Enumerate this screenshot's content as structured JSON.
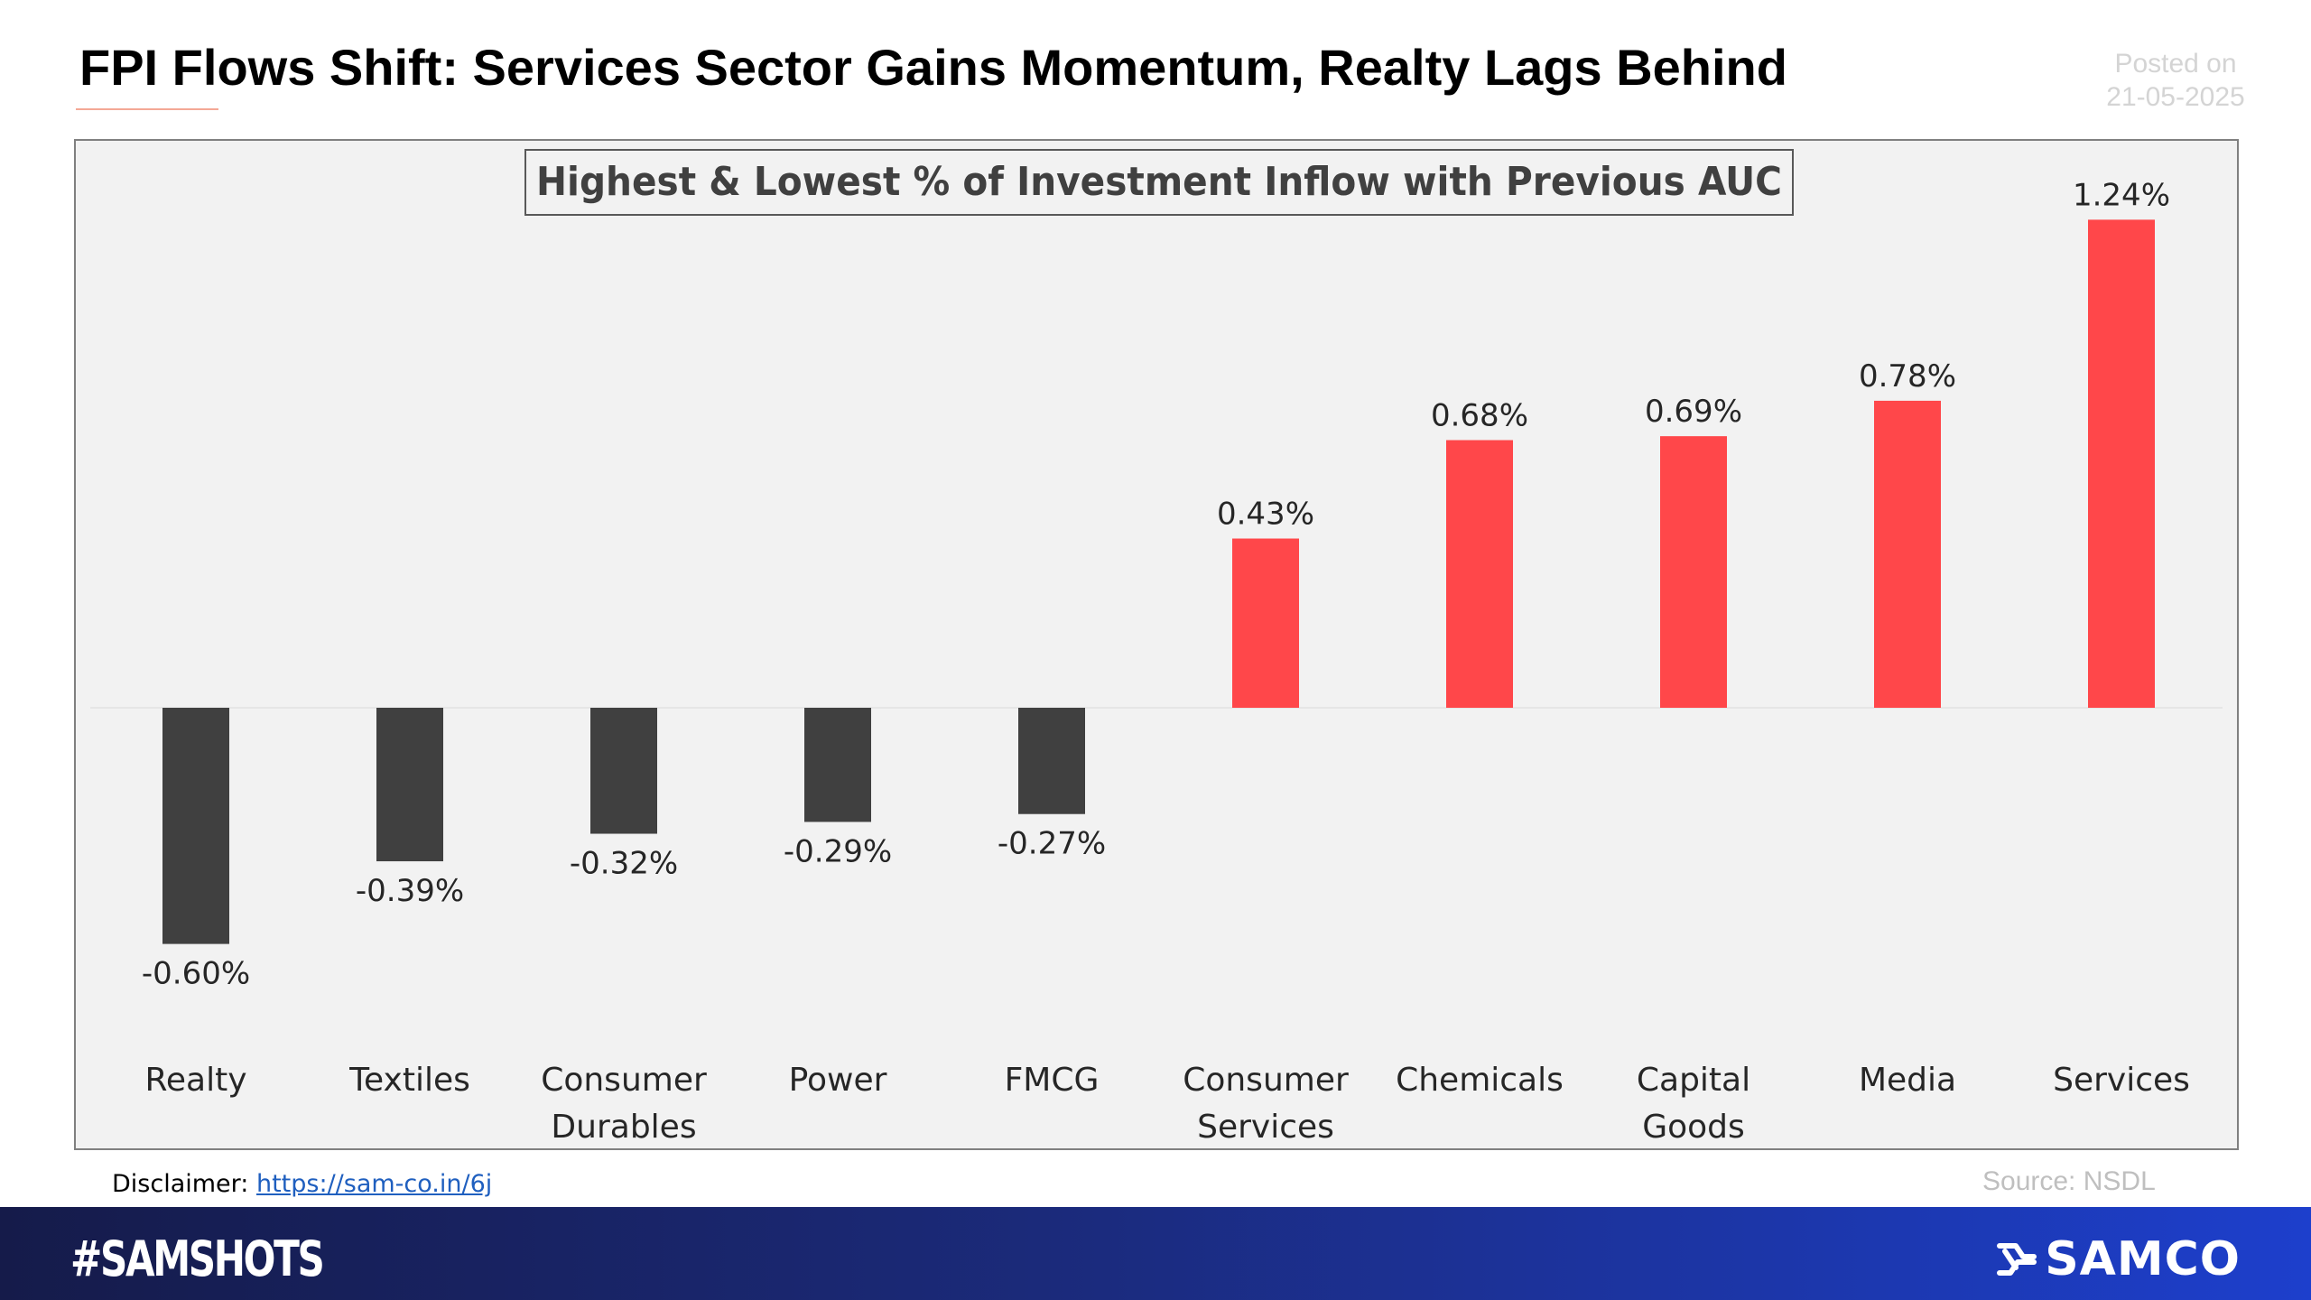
{
  "header": {
    "title": "FPI Flows Shift: Services Sector Gains Momentum, Realty Lags Behind",
    "posted_label": "Posted on",
    "posted_date": "21-05-2025"
  },
  "chart_data": {
    "type": "bar",
    "title": "Highest & Lowest % of Investment Inflow with Previous AUC",
    "categories": [
      "Realty",
      "Textiles",
      "Consumer Durables",
      "Power",
      "FMCG",
      "Consumer Services",
      "Chemicals",
      "Capital Goods",
      "Media",
      "Services"
    ],
    "category_lines": [
      [
        "Realty"
      ],
      [
        "Textiles"
      ],
      [
        "Consumer",
        "Durables"
      ],
      [
        "Power"
      ],
      [
        "FMCG"
      ],
      [
        "Consumer",
        "Services"
      ],
      [
        "Chemicals"
      ],
      [
        "Capital",
        "Goods"
      ],
      [
        "Media"
      ],
      [
        "Services"
      ]
    ],
    "values": [
      -0.6,
      -0.39,
      -0.32,
      -0.29,
      -0.27,
      0.43,
      0.68,
      0.69,
      0.78,
      1.24
    ],
    "data_labels": [
      "-0.60%",
      "-0.39%",
      "-0.32%",
      "-0.29%",
      "-0.27%",
      "0.43%",
      "0.68%",
      "0.69%",
      "0.78%",
      "1.24%"
    ],
    "xlabel": "",
    "ylabel": "",
    "ylim": [
      -0.7,
      1.4
    ],
    "grid": false,
    "legend": "none",
    "colors": {
      "positive": "#ff474a",
      "negative": "#404040"
    }
  },
  "footer": {
    "disclaimer_label": "Disclaimer:",
    "disclaimer_link": "https://sam-co.in/6j",
    "source": "Source: NSDL",
    "hashtag": "#SAMSHOTS",
    "brand": "SAMCO"
  }
}
